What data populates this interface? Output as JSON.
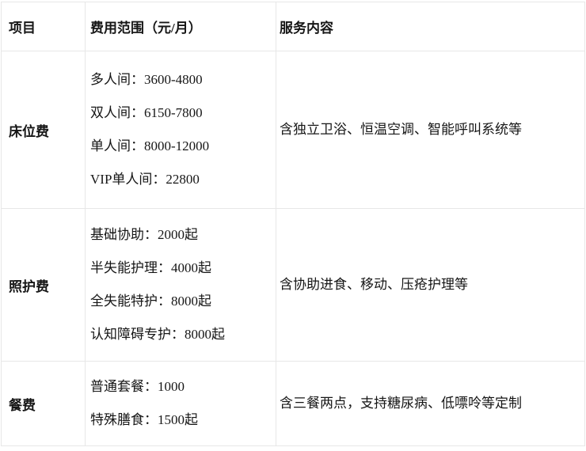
{
  "table": {
    "columns": [
      {
        "label": "项目"
      },
      {
        "label": "费用范围（元/月）"
      },
      {
        "label": "服务内容"
      }
    ],
    "rows": [
      {
        "item": "床位费",
        "fees": [
          "多人间：3600-4800",
          "双人间：6150-7800",
          "单人间：8000-12000",
          "VIP单人间：22800"
        ],
        "service": "含独立卫浴、恒温空调、智能呼叫系统等"
      },
      {
        "item": "照护费",
        "fees": [
          "基础协助：2000起",
          "半失能护理：4000起",
          "全失能特护：8000起",
          "认知障碍专护：8000起"
        ],
        "service": "含协助进食、移动、压疮护理等"
      },
      {
        "item": "餐费",
        "fees": [
          "普通套餐：1000",
          "特殊膳食：1500起"
        ],
        "service": "含三餐两点，支持糖尿病、低嘌呤等定制"
      }
    ]
  }
}
